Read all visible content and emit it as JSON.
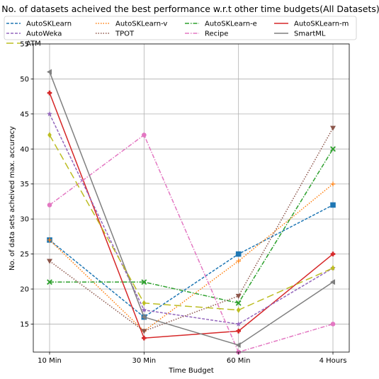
{
  "chart_data": {
    "type": "line",
    "title": "No. of datasets acheived the best performance w.r.t other time budgets(All Datasets)",
    "xlabel": "Time Budget",
    "ylabel": "No. of data sets acheived max. accuracy",
    "categories": [
      "10 Min",
      "30 Min",
      "60 Min",
      "4 Hours"
    ],
    "ylim": [
      11,
      55
    ],
    "yticks": [
      15,
      20,
      25,
      30,
      35,
      40,
      45,
      50,
      55
    ],
    "grid": true,
    "legend_position": "top",
    "series": [
      {
        "name": "AutoSKLearn",
        "values": [
          27,
          16,
          25,
          32
        ],
        "color": "#1f77b4",
        "dash": "4,2",
        "marker": "square"
      },
      {
        "name": "AutoSKLearn-v",
        "values": [
          27,
          14,
          24,
          35
        ],
        "color": "#ff7f0e",
        "dash": "1.5,2",
        "marker": "plus"
      },
      {
        "name": "AutoSKLearn-e",
        "values": [
          21,
          21,
          18,
          40
        ],
        "color": "#2ca02c",
        "dash": "6,2,1.5,2",
        "marker": "x"
      },
      {
        "name": "AutoSKLearn-m",
        "values": [
          48,
          13,
          14,
          25
        ],
        "color": "#d62728",
        "dash": "",
        "marker": "plus-bold"
      },
      {
        "name": "AutoWeka",
        "values": [
          45,
          17,
          15,
          23
        ],
        "color": "#9467bd",
        "dash": "4,2",
        "marker": "star"
      },
      {
        "name": "TPOT",
        "values": [
          24,
          14,
          19,
          43
        ],
        "color": "#8c564b",
        "dash": "1.5,2",
        "marker": "triangle-down"
      },
      {
        "name": "Recipe",
        "values": [
          32,
          42,
          11,
          15
        ],
        "color": "#e377c2",
        "dash": "6,2,1.5,2",
        "marker": "circle"
      },
      {
        "name": "SmartML",
        "values": [
          51,
          16,
          12,
          21
        ],
        "color": "#7f7f7f",
        "dash": "",
        "marker": "triangle-left"
      },
      {
        "name": "ATM",
        "values": [
          42,
          18,
          17,
          23
        ],
        "color": "#bcbd22",
        "dash": "10,5",
        "marker": "diamond"
      }
    ]
  }
}
